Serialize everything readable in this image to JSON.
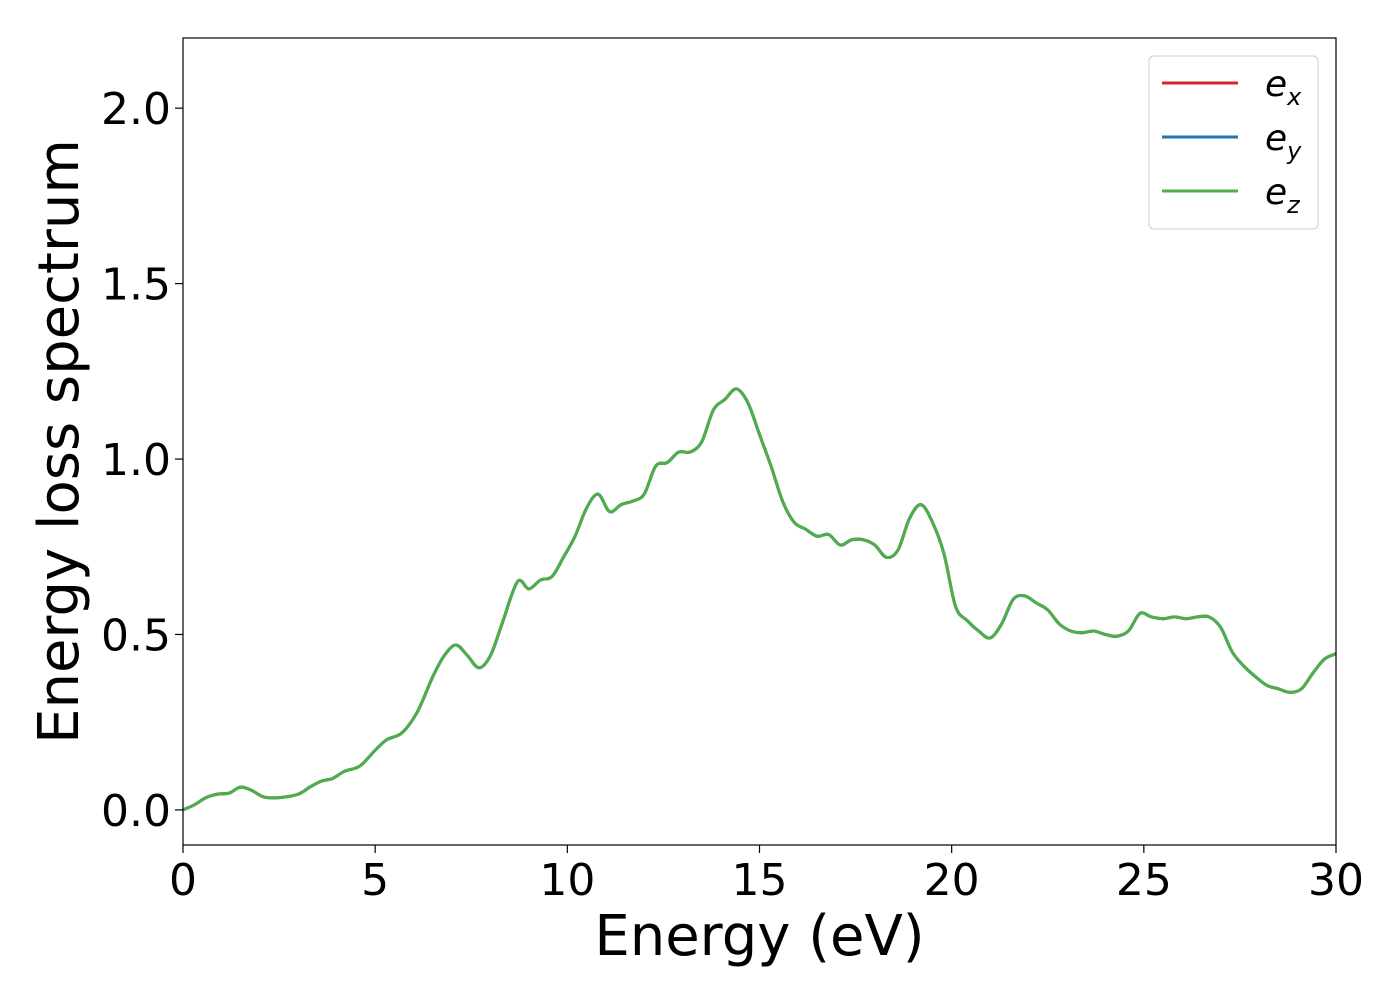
{
  "chart_data": {
    "type": "line",
    "title": "",
    "xlabel": "Energy (eV)",
    "ylabel": "Energy loss spectrum",
    "xlim": [
      0,
      30
    ],
    "ylim": [
      -0.1,
      2.2
    ],
    "xticks": [
      0,
      5,
      10,
      15,
      20,
      25,
      30
    ],
    "xtick_labels": [
      "0",
      "5",
      "10",
      "15",
      "20",
      "25",
      "30"
    ],
    "yticks": [
      0.0,
      0.5,
      1.0,
      1.5,
      2.0
    ],
    "ytick_labels": [
      "0.0",
      "0.5",
      "1.0",
      "1.5",
      "2.0"
    ],
    "grid": false,
    "legend": {
      "placement": "top-right",
      "entries": [
        {
          "base": "e",
          "sub": "x",
          "color": "#d62728"
        },
        {
          "base": "e",
          "sub": "y",
          "color": "#1f77b4"
        },
        {
          "base": "e",
          "sub": "z",
          "color": "#4daf4a"
        }
      ]
    },
    "x": [
      0,
      0.3,
      0.6,
      0.9,
      1.2,
      1.5,
      1.8,
      2.1,
      2.5,
      3.0,
      3.3,
      3.6,
      3.9,
      4.2,
      4.6,
      5.0,
      5.3,
      5.7,
      6.1,
      6.5,
      6.8,
      7.1,
      7.4,
      7.7,
      8.0,
      8.3,
      8.7,
      9.0,
      9.3,
      9.6,
      9.9,
      10.2,
      10.5,
      10.8,
      11.1,
      11.4,
      11.7,
      12.0,
      12.3,
      12.6,
      12.9,
      13.2,
      13.5,
      13.8,
      14.1,
      14.4,
      14.7,
      15.0,
      15.3,
      15.6,
      15.9,
      16.2,
      16.5,
      16.8,
      17.1,
      17.4,
      17.7,
      18.0,
      18.3,
      18.6,
      18.9,
      19.2,
      19.5,
      19.8,
      20.1,
      20.4,
      20.7,
      21.0,
      21.3,
      21.6,
      21.9,
      22.2,
      22.5,
      22.8,
      23.1,
      23.4,
      23.7,
      24.0,
      24.3,
      24.6,
      24.9,
      25.2,
      25.5,
      25.8,
      26.1,
      26.4,
      26.7,
      27.0,
      27.3,
      27.6,
      27.9,
      28.2,
      28.5,
      28.8,
      29.1,
      29.4,
      29.7,
      30.0
    ],
    "series": [
      {
        "name": "e_x",
        "color": "#d62728",
        "values": [
          0.0,
          0.015,
          0.035,
          0.045,
          0.048,
          0.065,
          0.055,
          0.037,
          0.035,
          0.045,
          0.065,
          0.082,
          0.09,
          0.11,
          0.125,
          0.17,
          0.2,
          0.22,
          0.28,
          0.38,
          0.44,
          0.47,
          0.44,
          0.405,
          0.44,
          0.53,
          0.65,
          0.63,
          0.655,
          0.665,
          0.72,
          0.78,
          0.86,
          0.9,
          0.85,
          0.87,
          0.88,
          0.9,
          0.98,
          0.99,
          1.02,
          1.02,
          1.05,
          1.14,
          1.17,
          1.2,
          1.16,
          1.07,
          0.98,
          0.88,
          0.82,
          0.8,
          0.78,
          0.785,
          0.755,
          0.77,
          0.77,
          0.755,
          0.72,
          0.74,
          0.83,
          0.87,
          0.82,
          0.73,
          0.58,
          0.54,
          0.51,
          0.49,
          0.53,
          0.6,
          0.61,
          0.59,
          0.57,
          0.53,
          0.51,
          0.505,
          0.51,
          0.5,
          0.495,
          0.51,
          0.56,
          0.55,
          0.545,
          0.55,
          0.545,
          0.55,
          0.55,
          0.52,
          0.45,
          0.41,
          0.38,
          0.355,
          0.345,
          0.335,
          0.345,
          0.39,
          0.43,
          0.445
        ]
      },
      {
        "name": "e_y",
        "color": "#1f77b4",
        "values": [
          0.0,
          0.015,
          0.035,
          0.045,
          0.048,
          0.065,
          0.055,
          0.037,
          0.035,
          0.045,
          0.065,
          0.082,
          0.09,
          0.11,
          0.125,
          0.17,
          0.2,
          0.22,
          0.28,
          0.38,
          0.44,
          0.47,
          0.44,
          0.405,
          0.44,
          0.53,
          0.65,
          0.63,
          0.655,
          0.665,
          0.72,
          0.78,
          0.86,
          0.9,
          0.85,
          0.87,
          0.88,
          0.9,
          0.98,
          0.99,
          1.02,
          1.02,
          1.05,
          1.14,
          1.17,
          1.2,
          1.16,
          1.07,
          0.98,
          0.88,
          0.82,
          0.8,
          0.78,
          0.785,
          0.755,
          0.77,
          0.77,
          0.755,
          0.72,
          0.74,
          0.83,
          0.87,
          0.82,
          0.73,
          0.58,
          0.54,
          0.51,
          0.49,
          0.53,
          0.6,
          0.61,
          0.59,
          0.57,
          0.53,
          0.51,
          0.505,
          0.51,
          0.5,
          0.495,
          0.51,
          0.56,
          0.55,
          0.545,
          0.55,
          0.545,
          0.55,
          0.55,
          0.52,
          0.45,
          0.41,
          0.38,
          0.355,
          0.345,
          0.335,
          0.345,
          0.39,
          0.43,
          0.445
        ]
      },
      {
        "name": "e_z",
        "color": "#4daf4a",
        "values": [
          0.0,
          0.015,
          0.035,
          0.045,
          0.048,
          0.065,
          0.055,
          0.037,
          0.035,
          0.045,
          0.065,
          0.082,
          0.09,
          0.11,
          0.125,
          0.17,
          0.2,
          0.22,
          0.28,
          0.38,
          0.44,
          0.47,
          0.44,
          0.405,
          0.44,
          0.53,
          0.65,
          0.63,
          0.655,
          0.665,
          0.72,
          0.78,
          0.86,
          0.9,
          0.85,
          0.87,
          0.88,
          0.9,
          0.98,
          0.99,
          1.02,
          1.02,
          1.05,
          1.14,
          1.17,
          1.2,
          1.16,
          1.07,
          0.98,
          0.88,
          0.82,
          0.8,
          0.78,
          0.785,
          0.755,
          0.77,
          0.77,
          0.755,
          0.72,
          0.74,
          0.83,
          0.87,
          0.82,
          0.73,
          0.58,
          0.54,
          0.51,
          0.49,
          0.53,
          0.6,
          0.61,
          0.59,
          0.57,
          0.53,
          0.51,
          0.505,
          0.51,
          0.5,
          0.495,
          0.51,
          0.56,
          0.55,
          0.545,
          0.55,
          0.545,
          0.55,
          0.55,
          0.52,
          0.45,
          0.41,
          0.38,
          0.355,
          0.345,
          0.335,
          0.345,
          0.39,
          0.43,
          0.445
        ]
      }
    ]
  }
}
